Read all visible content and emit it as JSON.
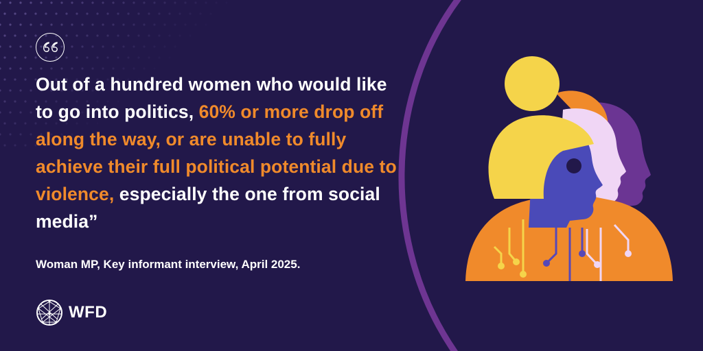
{
  "quote": {
    "part1": "Out of a hundred women who would like to go into politics, ",
    "highlight": "60% or more drop off along the way, or are unable to fully achieve their full political potential due to violence,",
    "part2": " especially the one from social media”"
  },
  "attribution": "Woman MP, Key informant interview, April 2025.",
  "logo": {
    "text": "WFD",
    "icon": "globe-icon"
  },
  "colors": {
    "background": "#22184a",
    "accent_orange": "#f08a2b",
    "arc_purple": "#6e3592",
    "text": "#ffffff"
  },
  "icons": [
    "quote-icon",
    "globe-icon",
    "women-profiles-illustration"
  ]
}
